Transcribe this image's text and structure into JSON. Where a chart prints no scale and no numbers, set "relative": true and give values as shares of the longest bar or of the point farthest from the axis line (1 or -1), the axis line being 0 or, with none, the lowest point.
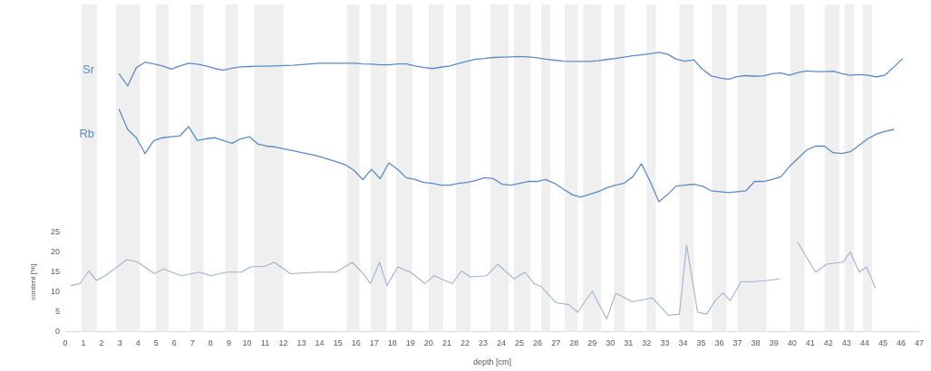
{
  "chart_data": [
    {
      "type": "line",
      "relative": true,
      "tick_labels": false,
      "marker": "none",
      "grid": false,
      "legend": false,
      "categories": [
        null,
        null,
        null,
        null,
        null,
        null,
        null,
        null,
        null,
        null,
        null,
        null,
        null,
        null,
        null,
        null,
        null,
        null,
        null,
        null,
        null,
        null,
        null,
        null,
        null,
        null,
        null,
        null,
        null,
        null,
        null,
        null,
        null,
        null,
        null,
        null,
        null,
        null,
        null,
        null,
        null,
        null,
        null,
        null,
        null,
        null,
        null,
        null,
        null,
        null,
        null,
        null,
        null,
        null,
        null,
        null,
        null,
        null,
        null,
        null,
        null,
        null,
        null,
        null,
        null,
        null,
        null,
        null,
        null,
        null,
        null,
        null,
        null,
        null,
        null,
        null,
        null,
        null,
        null,
        null,
        null,
        null,
        null,
        null,
        null,
        null,
        null,
        null,
        null,
        null,
        null,
        null,
        null,
        null,
        null
      ],
      "series": [
        {
          "name": "Sr",
          "color": "#5b8bc5",
          "values": [
            null,
            null,
            0.37,
            0,
            0.55,
            0.71,
            0.66,
            0.6,
            0.5,
            0.6,
            0.68,
            0.65,
            0.6,
            0.52,
            0.47,
            0.53,
            0.57,
            0.58,
            0.59,
            0.59,
            0.6,
            0.61,
            0.62,
            0.64,
            0.66,
            0.68,
            0.68,
            0.68,
            0.68,
            0.68,
            0.66,
            0.65,
            0.63,
            0.63,
            0.66,
            0.66,
            0.6,
            0.55,
            0.52,
            0.56,
            0.6,
            0.67,
            0.74,
            0.8,
            0.82,
            0.85,
            0.86,
            0.87,
            0.88,
            0.87,
            0.84,
            0.8,
            0.77,
            0.74,
            0.73,
            0.73,
            0.73,
            0.75,
            0.79,
            0.82,
            0.86,
            0.9,
            0.93,
            0.96,
            1,
            0.95,
            0.8,
            0.74,
            0.78,
            0.5,
            0.3,
            0.24,
            0.2,
            0.28,
            0.31,
            0.29,
            0.3,
            0.37,
            0.39,
            0.32,
            0.4,
            0.45,
            0.43,
            0.43,
            0.44,
            0.37,
            0.32,
            0.34,
            0.32,
            0.27,
            0.33,
            0.57,
            0.82,
            null,
            null
          ]
        }
      ]
    },
    {
      "type": "line",
      "relative": true,
      "tick_labels": false,
      "marker": "none",
      "grid": false,
      "legend": false,
      "categories": [
        null,
        null,
        null,
        null,
        null,
        null,
        null,
        null,
        null,
        null,
        null,
        null,
        null,
        null,
        null,
        null,
        null,
        null,
        null,
        null,
        null,
        null,
        null,
        null,
        null,
        null,
        null,
        null,
        null,
        null,
        null,
        null,
        null,
        null,
        null,
        null,
        null,
        null,
        null,
        null,
        null,
        null,
        null,
        null,
        null,
        null,
        null,
        null,
        null,
        null,
        null,
        null,
        null,
        null,
        null,
        null,
        null,
        null,
        null,
        null,
        null,
        null,
        null,
        null,
        null,
        null,
        null,
        null,
        null,
        null,
        null,
        null,
        null,
        null,
        null,
        null,
        null,
        null,
        null,
        null,
        null,
        null,
        null,
        null,
        null,
        null,
        null,
        null,
        null,
        null,
        null,
        null,
        null,
        null,
        null
      ],
      "series": [
        {
          "name": "Rb",
          "color": "#5b8bc5",
          "values": [
            null,
            null,
            1,
            0.78,
            0.69,
            0.52,
            0.66,
            0.69,
            0.7,
            0.71,
            0.81,
            0.66,
            0.68,
            0.69,
            0.66,
            0.63,
            0.68,
            0.7,
            0.62,
            0.6,
            0.59,
            0.57,
            0.55,
            0.53,
            0.51,
            0.49,
            0.46,
            0.43,
            0.4,
            0.34,
            0.24,
            0.35,
            0.25,
            0.42,
            0.35,
            0.26,
            0.24,
            0.21,
            0.2,
            0.18,
            0.18,
            0.2,
            0.21,
            0.23,
            0.26,
            0.25,
            0.19,
            0.18,
            0.2,
            0.22,
            0.22,
            0.24,
            0.2,
            0.14,
            0.08,
            0.05,
            0.08,
            0.11,
            0.15,
            0.18,
            0.2,
            0.27,
            0.41,
            0.22,
            0,
            0.08,
            0.17,
            0.18,
            0.19,
            0.17,
            0.12,
            0.11,
            0.1,
            0.11,
            0.12,
            0.22,
            0.22,
            0.24,
            0.27,
            0.38,
            0.47,
            0.56,
            0.6,
            0.6,
            0.53,
            0.52,
            0.54,
            0.61,
            0.68,
            0.73,
            0.76,
            0.78,
            null,
            null,
            null
          ]
        }
      ]
    },
    {
      "type": "line",
      "xlim": [
        0,
        47
      ],
      "xticks": [
        0,
        1,
        2,
        3,
        4,
        5,
        6,
        7,
        8,
        9,
        10,
        11,
        12,
        13,
        14,
        15,
        16,
        17,
        18,
        19,
        20,
        21,
        22,
        23,
        24,
        25,
        26,
        27,
        28,
        29,
        30,
        31,
        32,
        33,
        34,
        35,
        36,
        37,
        38,
        39,
        40,
        41,
        42,
        43,
        44,
        45,
        46,
        47
      ],
      "ylim": [
        0,
        25
      ],
      "yticks": [
        0,
        5,
        10,
        15,
        20,
        25
      ],
      "xlabel": "depth [cm]",
      "ylabel": "content [%]",
      "marker": "none",
      "grid": false,
      "legend": false,
      "bands": [
        {
          "axis": "x",
          "from": 0.9,
          "to": 1.75,
          "color": "#efefef"
        },
        {
          "axis": "x",
          "from": 2.8,
          "to": 4.1,
          "color": "#efefef"
        },
        {
          "axis": "x",
          "from": 5.0,
          "to": 5.7,
          "color": "#efefef"
        },
        {
          "axis": "x",
          "from": 6.9,
          "to": 7.6,
          "color": "#efefef"
        },
        {
          "axis": "x",
          "from": 8.8,
          "to": 9.5,
          "color": "#efefef"
        },
        {
          "axis": "x",
          "from": 10.4,
          "to": 12.0,
          "color": "#efefef"
        },
        {
          "axis": "x",
          "from": 15.5,
          "to": 16.2,
          "color": "#efefef"
        },
        {
          "axis": "x",
          "from": 16.8,
          "to": 17.7,
          "color": "#efefef"
        },
        {
          "axis": "x",
          "from": 18.2,
          "to": 19.1,
          "color": "#efefef"
        },
        {
          "axis": "x",
          "from": 20.0,
          "to": 20.8,
          "color": "#efefef"
        },
        {
          "axis": "x",
          "from": 21.5,
          "to": 22.3,
          "color": "#efefef"
        },
        {
          "axis": "x",
          "from": 23.4,
          "to": 24.4,
          "color": "#efefef"
        },
        {
          "axis": "x",
          "from": 24.7,
          "to": 25.6,
          "color": "#efefef"
        },
        {
          "axis": "x",
          "from": 26.2,
          "to": 26.7,
          "color": "#efefef"
        },
        {
          "axis": "x",
          "from": 27.5,
          "to": 28.2,
          "color": "#efefef"
        },
        {
          "axis": "x",
          "from": 28.5,
          "to": 29.5,
          "color": "#efefef"
        },
        {
          "axis": "x",
          "from": 30.2,
          "to": 30.8,
          "color": "#efefef"
        },
        {
          "axis": "x",
          "from": 32.0,
          "to": 32.5,
          "color": "#efefef"
        },
        {
          "axis": "x",
          "from": 33.8,
          "to": 34.6,
          "color": "#efefef"
        },
        {
          "axis": "x",
          "from": 35.6,
          "to": 36.4,
          "color": "#efefef"
        },
        {
          "axis": "x",
          "from": 37.0,
          "to": 38.6,
          "color": "#efefef"
        },
        {
          "axis": "x",
          "from": 39.9,
          "to": 40.7,
          "color": "#efefef"
        },
        {
          "axis": "x",
          "from": 41.8,
          "to": 42.6,
          "color": "#efefef"
        },
        {
          "axis": "x",
          "from": 42.9,
          "to": 43.4,
          "color": "#efefef"
        },
        {
          "axis": "x",
          "from": 43.9,
          "to": 44.4,
          "color": "#efefef"
        }
      ],
      "series": [
        {
          "color": "#9fb3d0",
          "x": [
            0.3,
            0.8,
            1.3,
            1.7,
            2.2,
            3.4,
            4.0,
            4.9,
            5.4,
            6.4,
            7.4,
            8.0,
            8.9,
            9.7,
            10.2,
            11.0,
            11.5,
            12.4,
            13.9,
            14.9,
            15.8,
            16.4,
            16.8,
            17.3,
            17.7,
            18.3,
            19.0,
            19.8,
            20.3,
            21.3,
            21.8,
            22.3,
            23.2,
            23.8,
            24.7,
            25.3,
            25.8,
            26.2,
            27.0,
            27.7,
            28.2,
            29.0,
            29.8,
            30.3,
            31.2,
            32.3,
            33.2,
            33.8,
            34.2,
            34.8,
            35.3,
            35.8,
            36.2,
            36.6,
            37.2,
            37.9,
            38.6,
            39.3,
            39.8,
            40.3,
            41.3,
            41.9,
            42.8,
            43.2,
            43.7,
            44.1,
            44.6
          ],
          "values": [
            11.6,
            12.1,
            15.3,
            12.9,
            14.1,
            18.2,
            17.5,
            14.6,
            15.8,
            14.1,
            15.0,
            14.1,
            15.0,
            15.0,
            16.3,
            16.5,
            17.5,
            14.6,
            15.0,
            15.0,
            17.5,
            14.6,
            12.1,
            17.5,
            11.6,
            16.3,
            15.0,
            12.1,
            14.1,
            12.1,
            15.3,
            13.8,
            14.1,
            17.0,
            13.3,
            15.0,
            12.1,
            11.4,
            7.3,
            6.8,
            4.9,
            10.2,
            3.2,
            9.7,
            7.5,
            8.5,
            4.1,
            4.4,
            21.8,
            4.9,
            4.4,
            8.0,
            9.7,
            7.8,
            12.6,
            12.6,
            12.9,
            13.3,
            null,
            22.6,
            15.0,
            17.0,
            17.5,
            20.1,
            15.0,
            16.3,
            10.9
          ]
        }
      ]
    }
  ]
}
